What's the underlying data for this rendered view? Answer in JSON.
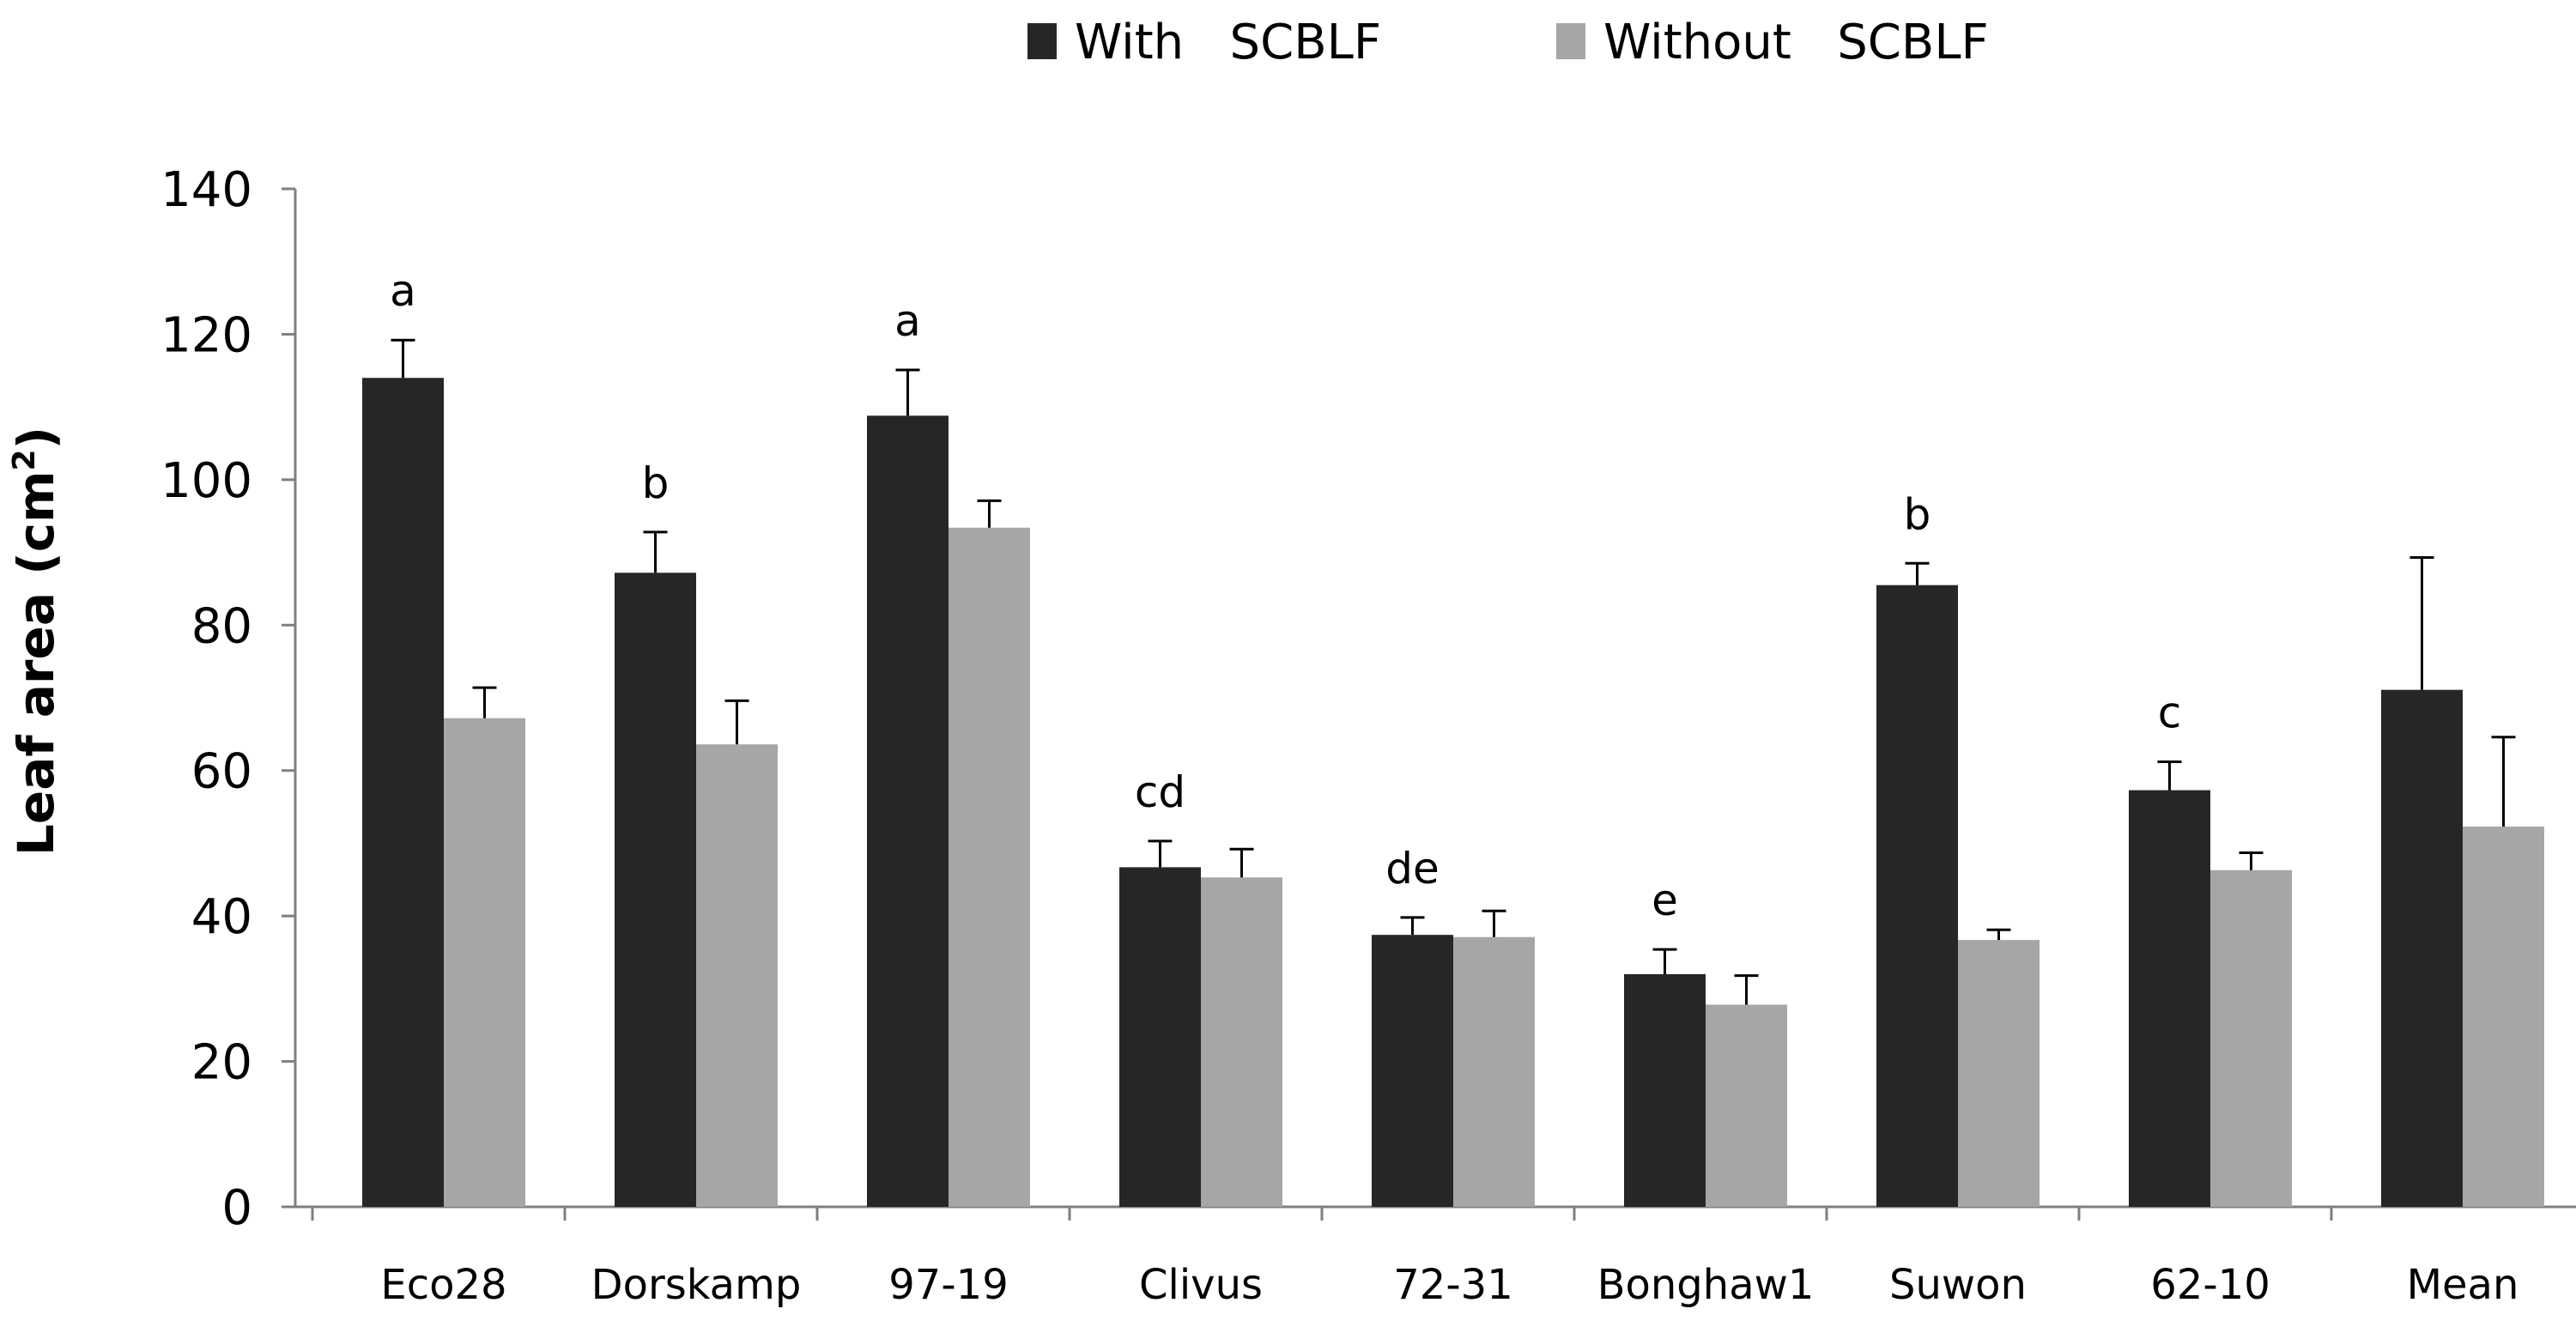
{
  "chart_data": {
    "type": "bar",
    "title": "",
    "xlabel": "",
    "ylabel": "Leaf area (cm",
    "ylabel_superscript": "2",
    "ylabel_suffix": ")",
    "ylim": [
      0,
      140
    ],
    "yticks": [
      0,
      20,
      40,
      60,
      80,
      100,
      120,
      140
    ],
    "grid": false,
    "legend_position": "top-center",
    "categories": [
      "Eco28",
      "Dorskamp",
      "97-19",
      "Clivus",
      "72-31",
      "Bonghaw1",
      "Suwon",
      "62-10",
      "Mean"
    ],
    "series": [
      {
        "name": "With   SCBLF",
        "color": "#262626",
        "values": [
          114,
          87.2,
          108.8,
          46.7,
          37.4,
          32,
          85.5,
          57.3,
          71.1
        ],
        "errors": [
          5.2,
          5.6,
          6.3,
          3.6,
          2.4,
          3.4,
          3,
          3.9,
          18.2
        ]
      },
      {
        "name": "Without   SCBLF",
        "color": "#a6a6a6",
        "values": [
          67.2,
          63.6,
          93.4,
          45.3,
          37.1,
          27.8,
          36.7,
          46.3,
          52.3
        ],
        "errors": [
          4.2,
          6,
          3.7,
          3.9,
          3.6,
          4,
          1.4,
          2.4,
          12.3
        ]
      }
    ],
    "significance_letters": [
      "a",
      "b",
      "a",
      "cd",
      "de",
      "e",
      "b",
      "c",
      ""
    ]
  }
}
